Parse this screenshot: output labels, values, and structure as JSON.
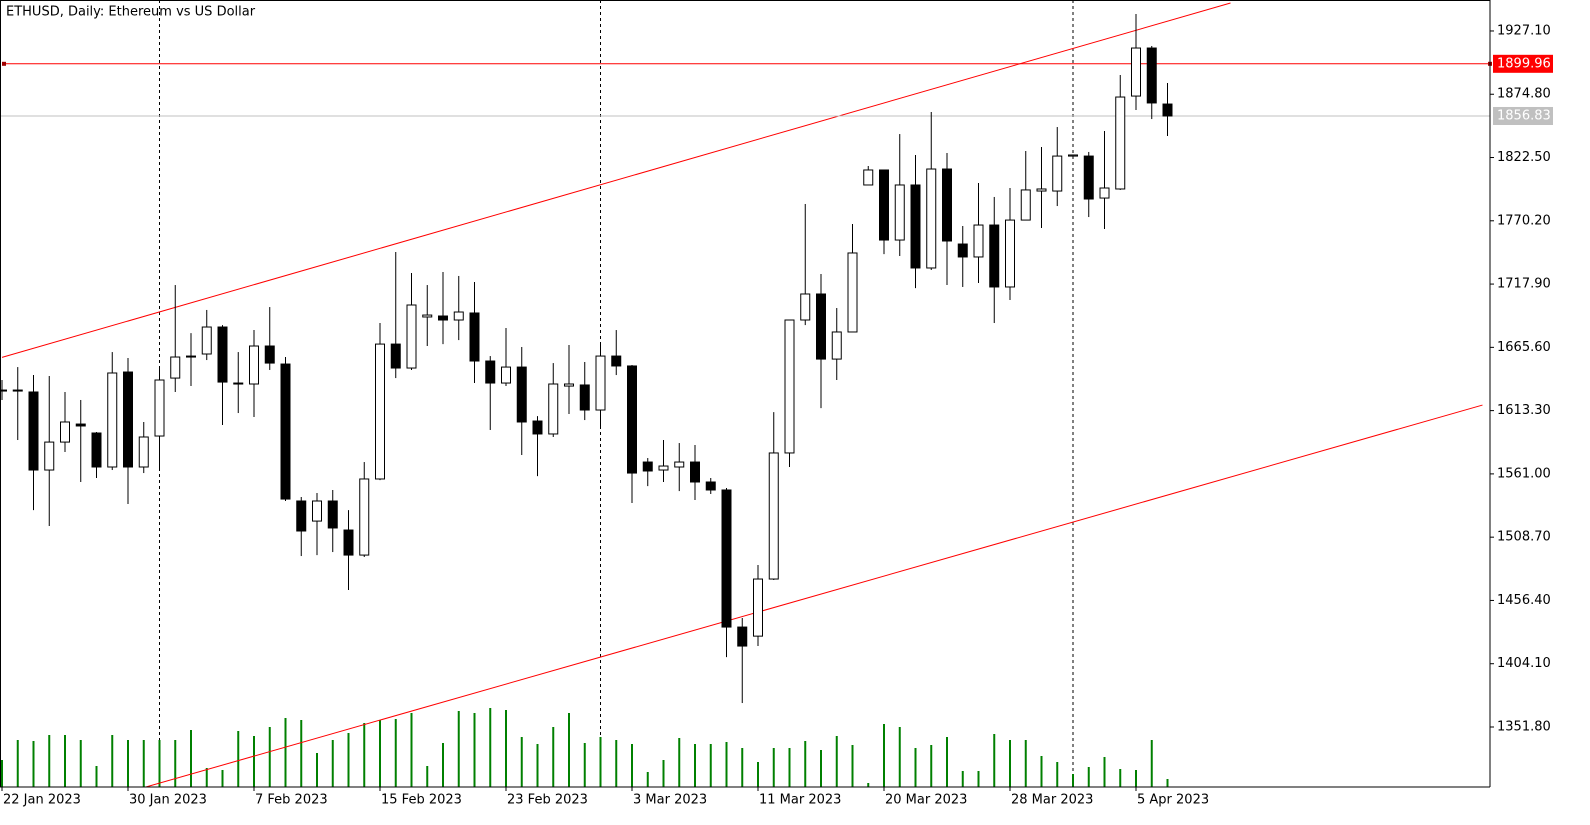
{
  "chart_data": {
    "type": "candlestick",
    "title": "ETHUSD, Daily:  Ethereum vs US Dollar",
    "categories": [
      "22 Jan 2023",
      null,
      null,
      null,
      null,
      null,
      null,
      null,
      "30 Jan 2023",
      null,
      null,
      null,
      null,
      null,
      null,
      null,
      "7 Feb 2023",
      null,
      null,
      null,
      null,
      null,
      null,
      null,
      "15 Feb 2023",
      null,
      null,
      null,
      null,
      null,
      null,
      null,
      "23 Feb 2023",
      null,
      null,
      null,
      null,
      null,
      null,
      null,
      "3 Mar 2023",
      null,
      null,
      null,
      null,
      null,
      null,
      null,
      "11 Mar 2023",
      null,
      null,
      null,
      null,
      null,
      null,
      null,
      "20 Mar 2023",
      null,
      null,
      null,
      null,
      null,
      null,
      null,
      "28 Mar 2023",
      null,
      null,
      null,
      null,
      null,
      null,
      null,
      "5 Apr 2023",
      null,
      null
    ],
    "open": [
      1630.3,
      1630.3,
      1628.7,
      1564.2,
      1587.3,
      1602.2,
      1594.8,
      1566.7,
      1645.2,
      1566.7,
      1592.3,
      1640.2,
      1658.4,
      1660.1,
      1682.4,
      1636.1,
      1635.3,
      1666.7,
      1651.8,
      1538.6,
      1522.0,
      1538.6,
      1514.6,
      1493.9,
      1556.8,
      1668.3,
      1648.5,
      1690.7,
      1691.5,
      1688.2,
      1694.0,
      1654.3,
      1636.1,
      1649.3,
      1604.7,
      1594.0,
      1633.6,
      1634.5,
      1613.8,
      1658.4,
      1650.2,
      1570.8,
      1564.2,
      1566.7,
      1570.8,
      1554.3,
      1547.7,
      1434.4,
      1426.9,
      1474.1,
      1578.3,
      1688.2,
      1709.7,
      1655.9,
      1678.3,
      1799.8,
      1812.2,
      1754.3,
      1799.8,
      1731.2,
      1813.0,
      1751.0,
      1740.3,
      1766.7,
      1715.5,
      1770.8,
      1794.8,
      1794.8,
      1823.7,
      1823.7,
      1789.0,
      1796.5,
      1873.3,
      1913.0,
      1866.7
    ],
    "high": [
      1638.6,
      1649.3,
      1642.7,
      1641.9,
      1628.7,
      1622.1,
      1595.6,
      1661.7,
      1656.8,
      1603.9,
      1650.2,
      1717.1,
      1677.4,
      1696.5,
      1684.0,
      1661.7,
      1679.9,
      1698.9,
      1657.6,
      1541.9,
      1545.2,
      1547.7,
      1531.1,
      1570.8,
      1685.7,
      1744.4,
      1727.0,
      1717.1,
      1727.9,
      1724.6,
      1719.6,
      1658.4,
      1681.6,
      1665.9,
      1608.8,
      1652.6,
      1667.5,
      1653.5,
      1669.2,
      1679.9,
      1651.0,
      1574.1,
      1589.0,
      1586.5,
      1584.9,
      1557.6,
      1549.3,
      1441.9,
      1485.7,
      1612.1,
      1688.2,
      1784.1,
      1726.2,
      1698.1,
      1767.5,
      1815.5,
      1812.2,
      1841.9,
      1824.6,
      1860.1,
      1826.2,
      1765.9,
      1801.4,
      1789.9,
      1797.3,
      1827.9,
      1831.2,
      1847.7,
      1824.6,
      1827.1,
      1844.4,
      1890.7,
      1941.1,
      1914.7,
      1884.1
    ],
    "low": [
      1622.1,
      1589.0,
      1531.1,
      1517.9,
      1579.1,
      1554.3,
      1557.6,
      1564.2,
      1536.1,
      1561.7,
      1564.2,
      1628.7,
      1633.6,
      1655.1,
      1601.4,
      1611.3,
      1608.0,
      1646.9,
      1538.6,
      1493.1,
      1493.9,
      1496.4,
      1465.0,
      1492.3,
      1555.9,
      1640.2,
      1646.9,
      1666.7,
      1668.3,
      1671.6,
      1636.1,
      1597.3,
      1633.6,
      1576.6,
      1559.2,
      1591.5,
      1610.5,
      1605.5,
      1598.9,
      1642.7,
      1536.9,
      1550.9,
      1554.3,
      1546.8,
      1539.4,
      1544.4,
      1409.6,
      1371.6,
      1418.7,
      1473.3,
      1566.7,
      1684.0,
      1615.4,
      1638.6,
      1678.3,
      1799.8,
      1742.7,
      1741.1,
      1714.6,
      1729.5,
      1717.1,
      1715.5,
      1718.8,
      1685.7,
      1704.7,
      1770.8,
      1764.2,
      1782.4,
      1822.1,
      1773.3,
      1763.4,
      1795.7,
      1861.8,
      1854.3,
      1840.3
    ],
    "close": [
      1630.3,
      1629.5,
      1564.2,
      1587.3,
      1603.9,
      1600.6,
      1566.7,
      1644.4,
      1566.7,
      1591.5,
      1638.6,
      1657.6,
      1657.6,
      1682.4,
      1636.9,
      1635.3,
      1666.7,
      1652.6,
      1540.2,
      1513.8,
      1538.6,
      1516.3,
      1493.9,
      1556.8,
      1668.3,
      1648.5,
      1700.6,
      1692.3,
      1688.2,
      1694.8,
      1654.3,
      1636.1,
      1649.3,
      1603.9,
      1594.0,
      1635.3,
      1635.3,
      1613.8,
      1658.4,
      1650.2,
      1561.7,
      1563.4,
      1567.5,
      1570.8,
      1554.3,
      1547.7,
      1434.4,
      1418.7,
      1474.1,
      1578.3,
      1688.2,
      1709.7,
      1655.9,
      1678.3,
      1743.6,
      1812.2,
      1754.3,
      1799.8,
      1731.2,
      1813.0,
      1753.5,
      1740.3,
      1766.7,
      1715.5,
      1770.8,
      1795.7,
      1796.5,
      1823.7,
      1824.6,
      1788.2,
      1797.3,
      1872.5,
      1913.0,
      1867.6,
      1856.83
    ],
    "up_color": "#ffffff",
    "down_color": "#000000",
    "volume": {
      "color": "#008000",
      "values": [
        27,
        47,
        46,
        52,
        52,
        47,
        21,
        52,
        47,
        47,
        47,
        47,
        57,
        19,
        17,
        56,
        51,
        60,
        69,
        67,
        34,
        47,
        54,
        64,
        67,
        68,
        74,
        21,
        44,
        76,
        74,
        79,
        77,
        50,
        43,
        60,
        74,
        44,
        50,
        47,
        43,
        15,
        27,
        49,
        43,
        43,
        45,
        39,
        25,
        39,
        39,
        46,
        37,
        51,
        42,
        4,
        63,
        60,
        39,
        42,
        50,
        16,
        16,
        53,
        47,
        47,
        31,
        25,
        13,
        20,
        30,
        18,
        17,
        47,
        8
      ]
    },
    "ylim": [
      1302.2,
      1952.7
    ],
    "yticks": [
      {
        "value": 1927.1,
        "label": "1927.10"
      },
      {
        "value": 1874.8,
        "label": "1874.80"
      },
      {
        "value": 1822.5,
        "label": "1822.50"
      },
      {
        "value": 1770.2,
        "label": "1770.20"
      },
      {
        "value": 1717.9,
        "label": "1717.90"
      },
      {
        "value": 1665.6,
        "label": "1665.60"
      },
      {
        "value": 1613.3,
        "label": "1613.30"
      },
      {
        "value": 1561,
        "label": "1561.00"
      },
      {
        "value": 1508.7,
        "label": "1508.70"
      },
      {
        "value": 1456.4,
        "label": "1456.40"
      },
      {
        "value": 1404.1,
        "label": "1404.10"
      },
      {
        "value": 1351.8,
        "label": "1351.80"
      }
    ],
    "hline": {
      "value": 1899.96,
      "color": "#ff0000"
    },
    "last_price_color": "#c0c0c0",
    "trendlines": [
      {
        "color": "#ff0000",
        "x": [
          0,
          78
        ],
        "y": [
          1657.3,
          1950.2
        ]
      },
      {
        "color": "#ff0000",
        "x": [
          9,
          94
        ],
        "y": [
          1301.7,
          1617.9
        ]
      }
    ]
  }
}
